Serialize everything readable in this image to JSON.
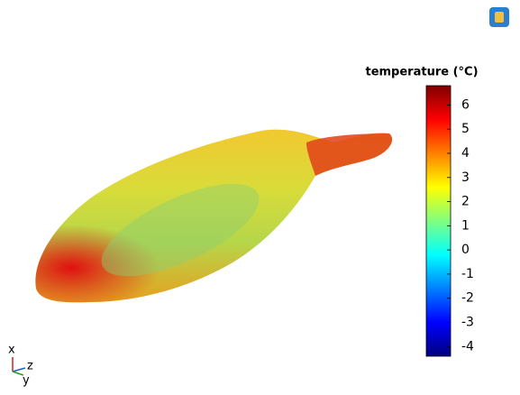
{
  "colorbar": {
    "title": "temperature (°C)",
    "range": [
      -4.4,
      6.8
    ],
    "ticks": [
      6,
      5,
      4,
      3,
      2,
      1,
      0,
      -1,
      -2,
      -3,
      -4
    ],
    "colormap": [
      "#00007f",
      "#0000ff",
      "#0080ff",
      "#00ffff",
      "#80ff80",
      "#ffff00",
      "#ff8000",
      "#ff0000",
      "#7f0000"
    ]
  },
  "axes": {
    "x": "x",
    "z": "z",
    "y": "y"
  }
}
